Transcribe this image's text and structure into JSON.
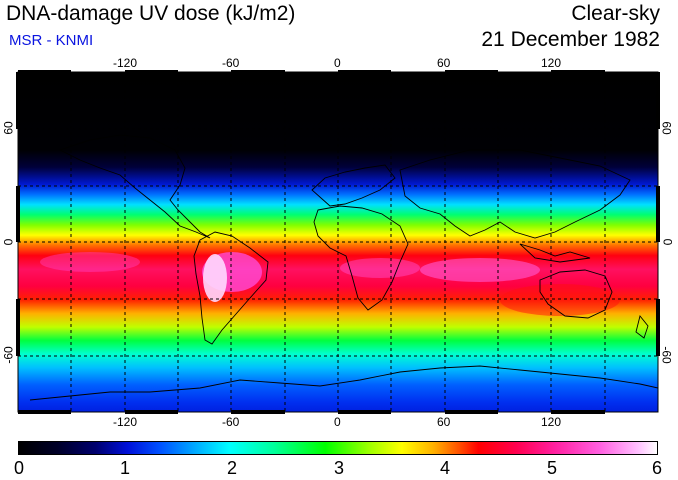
{
  "header": {
    "title": "DNA-damage UV dose (kJ/m2)",
    "subtitle": "MSR - KNMI",
    "condition": "Clear-sky",
    "date": "21 December 1982"
  },
  "map": {
    "lon_ticks": [
      "-120",
      "-60",
      "0",
      "60",
      "120"
    ],
    "lat_ticks": [
      "60",
      "0",
      "-60"
    ]
  },
  "colorbar": {
    "labels": [
      "0",
      "1",
      "2",
      "3",
      "4",
      "5",
      "6"
    ],
    "min": 0,
    "max": 6,
    "unit": "kJ/m2"
  },
  "colors": {
    "subtitle": "#0a14e0",
    "low": "#000000",
    "mid": "#00ff00",
    "high": "#ff0000",
    "max": "#ffffff"
  }
}
